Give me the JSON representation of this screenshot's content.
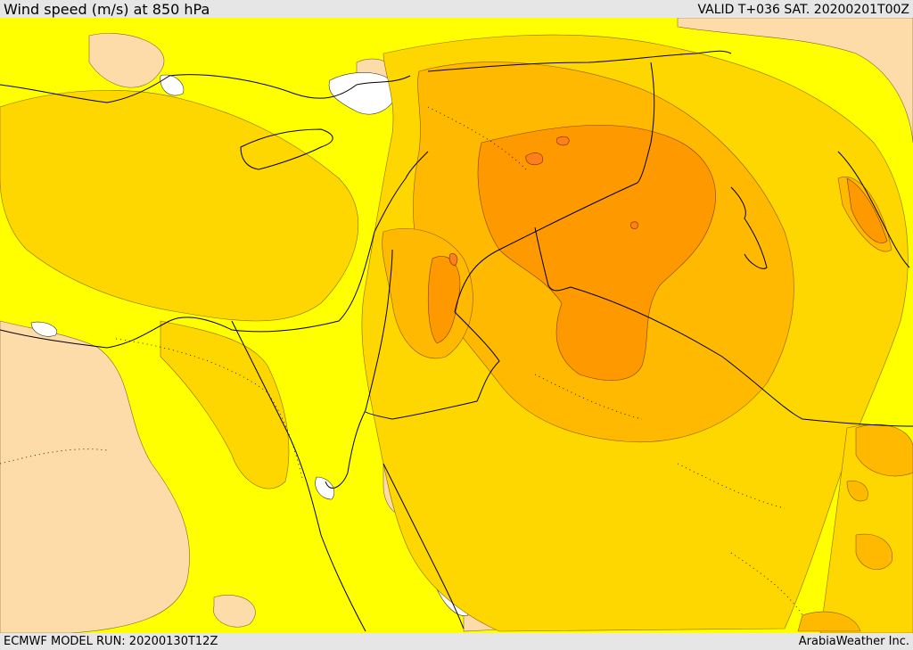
{
  "header": {
    "title": "Wind speed (m/s) at 850 hPa",
    "valid": "VALID T+036 SAT. 20200201T00Z"
  },
  "footer": {
    "model_run": "ECMWF MODEL RUN: 20200130T12Z",
    "credit": "ArabiaWeather Inc."
  },
  "colors": {
    "band_lowest": "#ffffff",
    "band_low": "#fddcaa",
    "band_1": "#ffff00",
    "band_2": "#ffd700",
    "band_3": "#ffb900",
    "band_4": "#ff9900",
    "band_5": "#ff7f1a",
    "coastline": "#000000"
  }
}
